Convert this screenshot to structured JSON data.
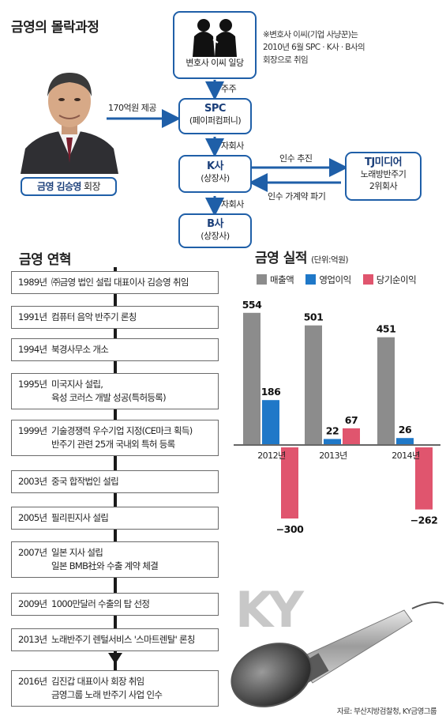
{
  "title_main": "금영의 몰락과정",
  "structure": {
    "top_box": "변호사 이씨 일당",
    "note": [
      "※변호사 이씨(기업 사냥꾼)는",
      "2010년 6월 SPC · K사 · B사의",
      "회장으로 취임"
    ],
    "person_caption_name": "금영 김승영",
    "person_caption_role": "회장",
    "edge_fund": "170억원 제공",
    "edge_shareholder": "주주",
    "spc_title": "SPC",
    "spc_sub": "(페이퍼컴퍼니)",
    "edge_sub1": "자회사",
    "k_title": "K사",
    "k_sub": "(상장사)",
    "edge_acquire": "인수 추진",
    "edge_cancel": "인수 가계약 파기",
    "tj_title": "TJ미디어",
    "tj_sub": [
      "노래방반주기",
      "2위회사"
    ],
    "edge_sub2": "자회사",
    "b_title": "B사",
    "b_sub": "(상장사)"
  },
  "history": {
    "title": "금영 연혁",
    "items": [
      {
        "year": "1989년",
        "lines": [
          "㈜금영 법인 설립 대표이사 김승영 취임"
        ]
      },
      {
        "year": "1991년",
        "lines": [
          "컴퓨터 음악 반주기 론칭"
        ]
      },
      {
        "year": "1994년",
        "lines": [
          "북경사무소 개소"
        ]
      },
      {
        "year": "1995년",
        "lines": [
          "미국지사 설립,",
          "육성 코러스 개발 성공(특허등록)"
        ]
      },
      {
        "year": "1999년",
        "lines": [
          "기술경쟁력 우수기업 지정(CE마크 획득)",
          "반주기 관련 25개 국내외 특허 등록"
        ]
      },
      {
        "year": "2003년",
        "lines": [
          "중국 합작법인 설립"
        ]
      },
      {
        "year": "2005년",
        "lines": [
          "필리핀지사 설립"
        ]
      },
      {
        "year": "2007년",
        "lines": [
          "일본 지사 설립",
          "일본 BMB社와 수출 계약 체결"
        ]
      },
      {
        "year": "2009년",
        "lines": [
          "1000만달러 수출의 탑 선정"
        ]
      },
      {
        "year": "2013년",
        "lines": [
          "노래반주기 렌털서비스 '스마트렌탈' 론칭"
        ]
      },
      {
        "year": "2016년",
        "lines": [
          "김진갑 대표이사 회장 취임",
          "금영그룹 노래 반주기 사업 인수"
        ]
      }
    ]
  },
  "chart_data": {
    "type": "bar",
    "title": "금영 실적",
    "unit": "(단위:억원)",
    "categories": [
      "2012년",
      "2013년",
      "2014년"
    ],
    "series": [
      {
        "name": "매출액",
        "color": "#8c8c8c",
        "values": [
          554,
          501,
          451
        ],
        "labels": [
          "554",
          "501",
          "451"
        ]
      },
      {
        "name": "영업이익",
        "color": "#1f78c8",
        "values": [
          186,
          22,
          26
        ],
        "labels": [
          "186",
          "22",
          "26"
        ]
      },
      {
        "name": "당기순이익",
        "color": "#e0556e",
        "values": [
          -300,
          67,
          -262
        ],
        "labels": [
          "−300",
          "67",
          "−262"
        ]
      }
    ],
    "ylim": [
      -300,
      554
    ]
  },
  "logo_text": "KY",
  "source": "자료: 부산지방검찰청, KY금영그룹"
}
